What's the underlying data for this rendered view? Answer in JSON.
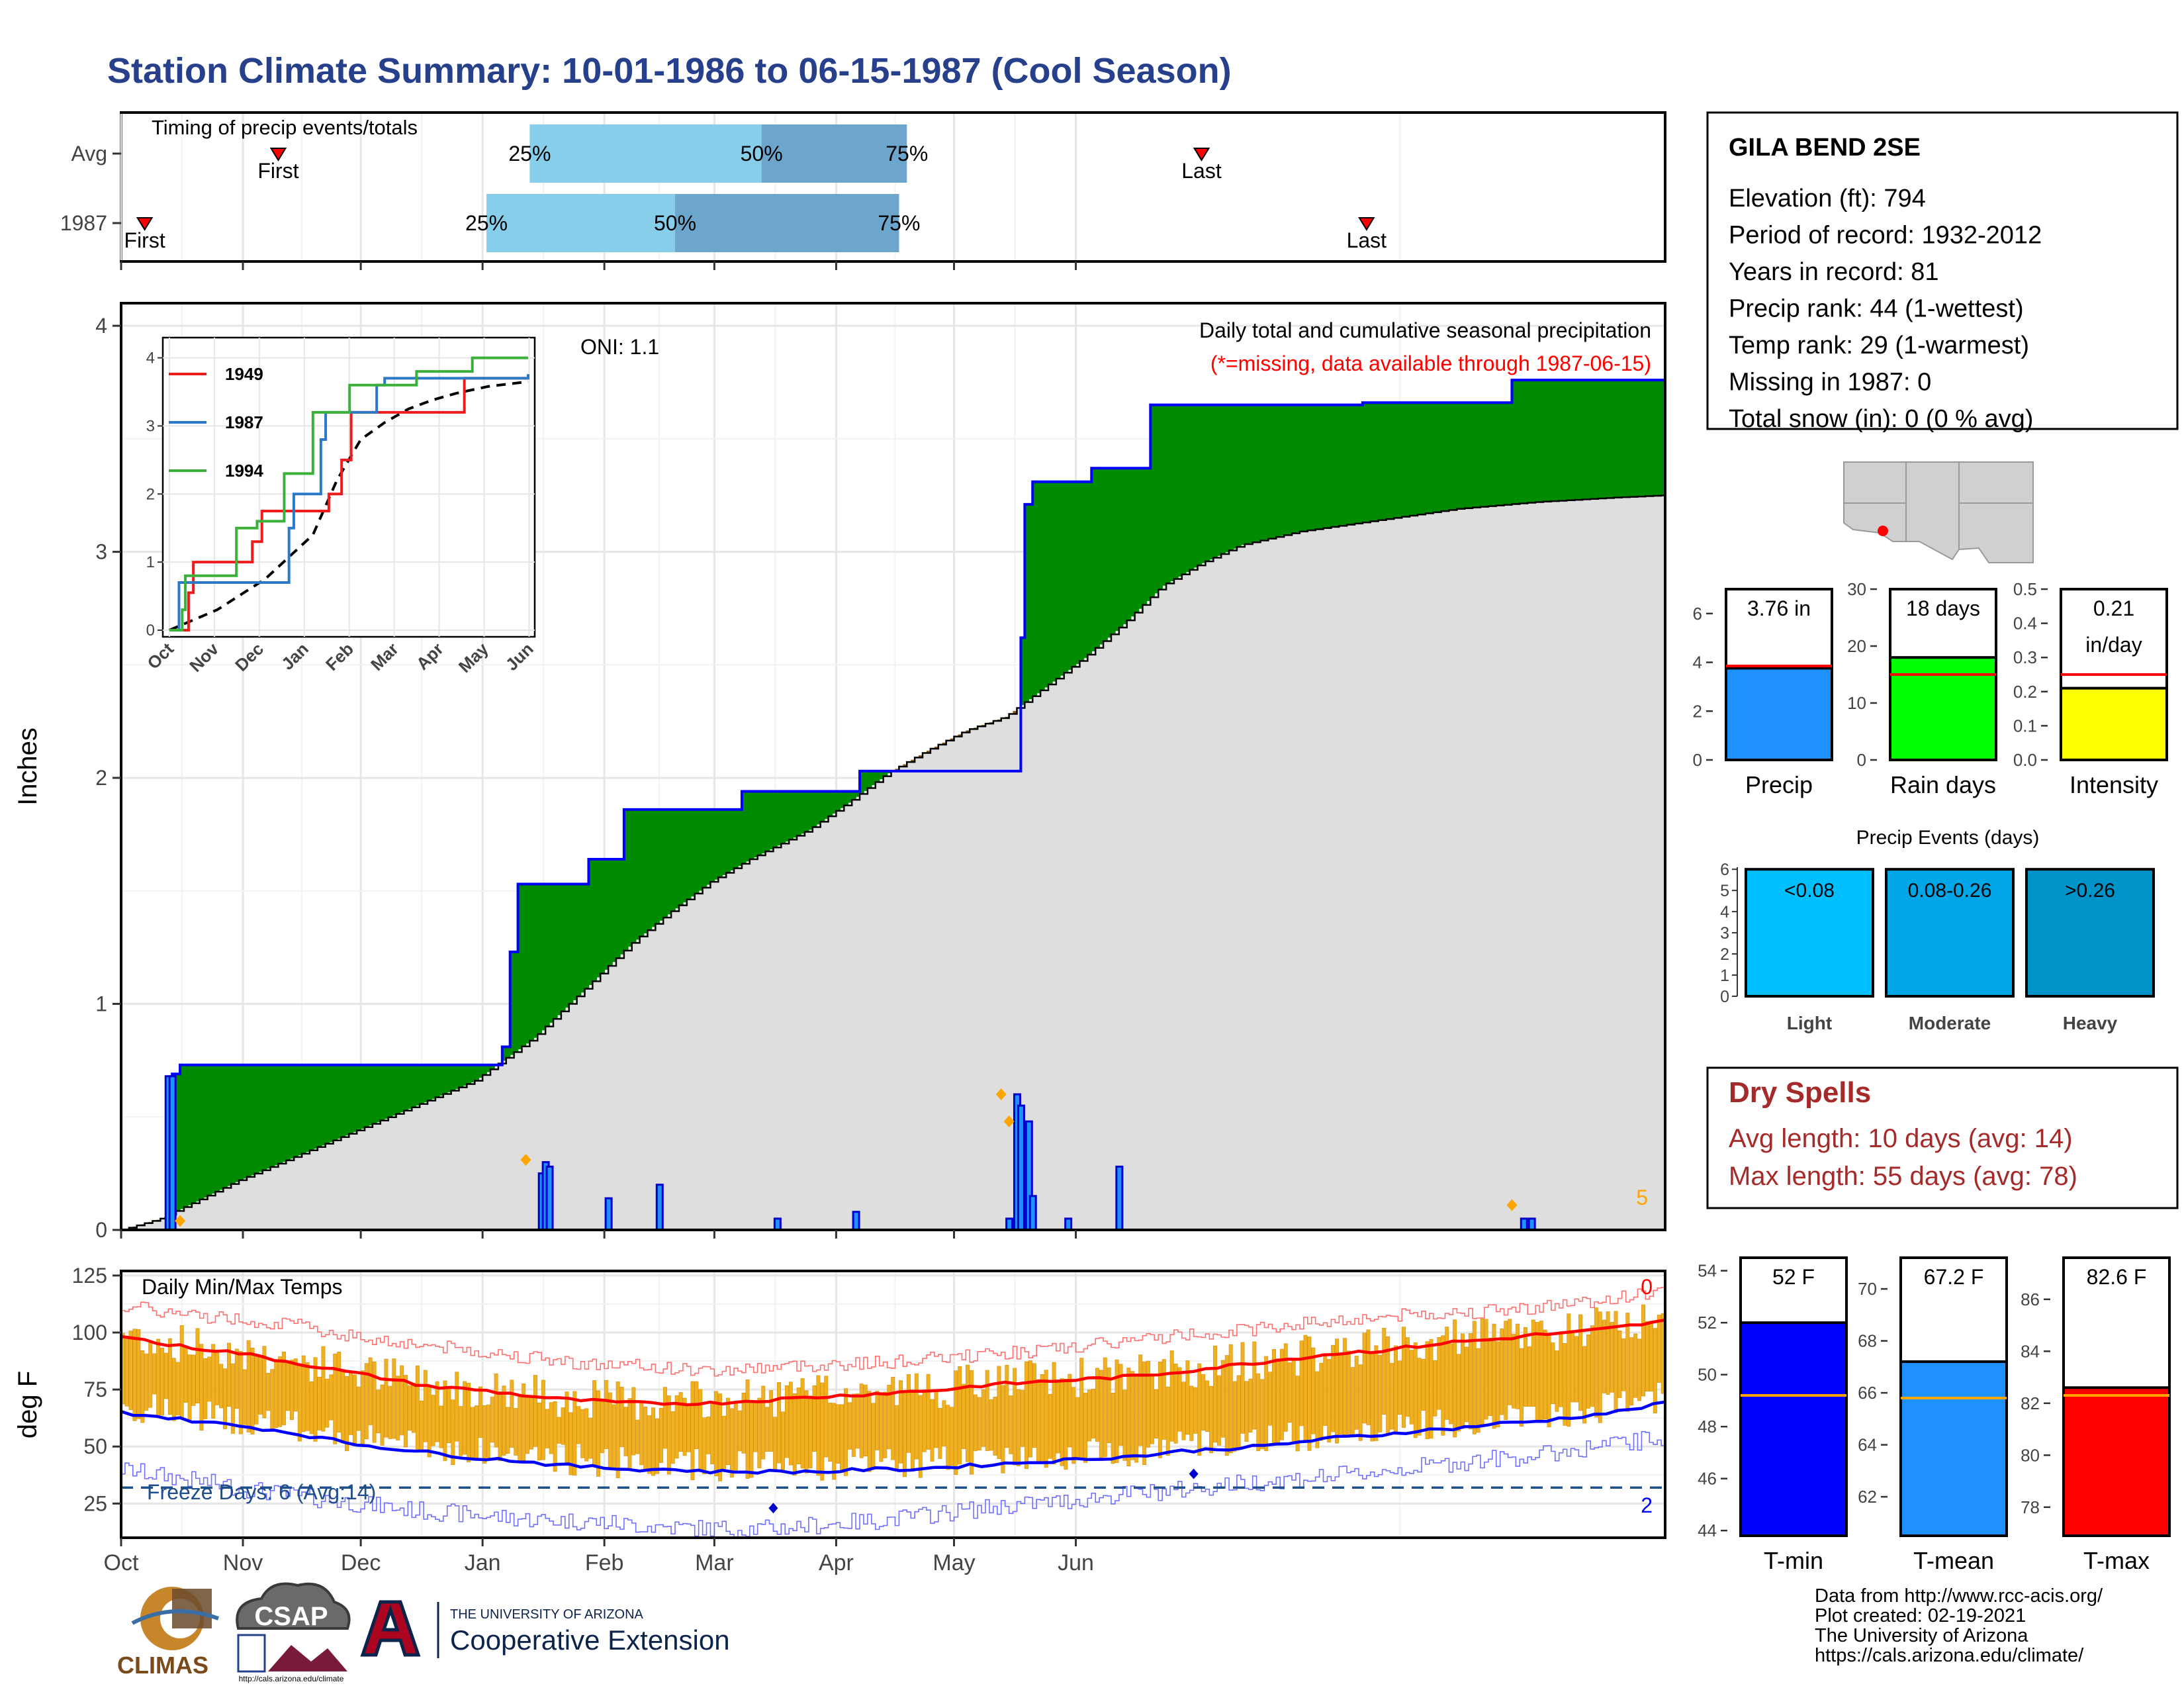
{
  "title": "Station Climate Summary: 10-01-1986 to 06-15-1987 (Cool Season)",
  "months": [
    "Oct",
    "Nov",
    "Dec",
    "Jan",
    "Feb",
    "Mar",
    "Apr",
    "May",
    "Jun"
  ],
  "timing": {
    "label": "Timing of precip events/totals",
    "rows": [
      {
        "name": "Avg",
        "first_day": 40,
        "p25": 104,
        "p50": 163,
        "p75": 200,
        "last_day": 275
      },
      {
        "name": "1987",
        "first_day": 6,
        "p25": 93,
        "p50": 141,
        "p75": 198,
        "last_day": 317
      }
    ],
    "first_label": "First",
    "last_label": "Last",
    "p25_label": "25%",
    "p50_label": "50%",
    "p75_label": "75%"
  },
  "station": {
    "name": "GILA BEND 2SE",
    "lines": [
      "Elevation (ft): 794",
      "Period of record: 1932-2012",
      "Years in record: 81",
      "Precip rank: 44 (1-wettest)",
      "Temp rank: 29 (1-warmest)",
      "Missing in 1987: 0",
      "Total snow (in): 0 (0 % avg)"
    ]
  },
  "chart_data": [
    {
      "type": "area",
      "name": "Daily total and cumulative seasonal precipitation",
      "title": "Daily total and cumulative seasonal precipitation",
      "subtitle": "(*=missing, data available through 1987-06-15)",
      "ylabel": "Inches",
      "ylim": [
        0,
        4.1
      ],
      "oni": "ONI: 1.1",
      "corner_count": "5",
      "cumulative_steps": [
        [
          0,
          0
        ],
        [
          9,
          0
        ],
        [
          13,
          0.69
        ],
        [
          15,
          0.73
        ],
        [
          96,
          0.73
        ],
        [
          97,
          0.81
        ],
        [
          99,
          1.23
        ],
        [
          101,
          1.53
        ],
        [
          117,
          1.53
        ],
        [
          119,
          1.64
        ],
        [
          126,
          1.64
        ],
        [
          128,
          1.86
        ],
        [
          156,
          1.86
        ],
        [
          158,
          1.94
        ],
        [
          186,
          1.94
        ],
        [
          188,
          2.03
        ],
        [
          228,
          2.03
        ],
        [
          229,
          2.62
        ],
        [
          230,
          3.21
        ],
        [
          232,
          3.31
        ],
        [
          246,
          3.31
        ],
        [
          247,
          3.37
        ],
        [
          261,
          3.37
        ],
        [
          262,
          3.65
        ],
        [
          315,
          3.65
        ],
        [
          316,
          3.66
        ],
        [
          353,
          3.66
        ],
        [
          354,
          3.76
        ],
        [
          393,
          3.76
        ]
      ],
      "average_cumulative": [
        [
          0,
          0
        ],
        [
          10,
          0.05
        ],
        [
          30,
          0.22
        ],
        [
          45,
          0.33
        ],
        [
          60,
          0.44
        ],
        [
          75,
          0.55
        ],
        [
          90,
          0.66
        ],
        [
          105,
          0.85
        ],
        [
          120,
          1.1
        ],
        [
          130,
          1.27
        ],
        [
          140,
          1.41
        ],
        [
          150,
          1.54
        ],
        [
          160,
          1.64
        ],
        [
          175,
          1.77
        ],
        [
          185,
          1.89
        ],
        [
          195,
          2.02
        ],
        [
          205,
          2.12
        ],
        [
          215,
          2.21
        ],
        [
          225,
          2.27
        ],
        [
          235,
          2.4
        ],
        [
          245,
          2.53
        ],
        [
          255,
          2.68
        ],
        [
          265,
          2.85
        ],
        [
          275,
          2.95
        ],
        [
          285,
          3.03
        ],
        [
          300,
          3.09
        ],
        [
          320,
          3.14
        ],
        [
          340,
          3.19
        ],
        [
          360,
          3.22
        ],
        [
          380,
          3.24
        ],
        [
          393,
          3.25
        ]
      ],
      "daily_bars": [
        [
          12,
          0.68
        ],
        [
          13,
          0.68
        ],
        [
          107,
          0.25
        ],
        [
          108,
          0.3
        ],
        [
          109,
          0.28
        ],
        [
          124,
          0.14
        ],
        [
          137,
          0.2
        ],
        [
          167,
          0.05
        ],
        [
          187,
          0.08
        ],
        [
          226,
          0.05
        ],
        [
          228,
          0.6
        ],
        [
          229,
          0.55
        ],
        [
          231,
          0.48
        ],
        [
          232,
          0.15
        ],
        [
          241,
          0.05
        ],
        [
          254,
          0.28
        ],
        [
          357,
          0.05
        ],
        [
          359,
          0.05
        ]
      ],
      "missing_markers": [
        [
          15,
          0.04
        ],
        [
          103,
          0.31
        ],
        [
          224,
          0.6
        ],
        [
          226,
          0.48
        ],
        [
          354,
          0.11
        ]
      ]
    },
    {
      "type": "line",
      "name": "inset cumulative years",
      "series": [
        {
          "name": "1949",
          "color": "#ee1c1c",
          "steps": [
            [
              5,
              0
            ],
            [
              12,
              0.55
            ],
            [
              15,
              1.0
            ],
            [
              45,
              1.0
            ],
            [
              52,
              1.3
            ],
            [
              58,
              1.75
            ],
            [
              95,
              1.75
            ],
            [
              100,
              2.0
            ],
            [
              108,
              2.5
            ],
            [
              114,
              3.2
            ],
            [
              180,
              3.2
            ],
            [
              185,
              3.7
            ],
            [
              225,
              3.7
            ]
          ]
        },
        {
          "name": "1987",
          "color": "#2a7ac8",
          "steps": [
            [
              0,
              0
            ],
            [
              6,
              0.7
            ],
            [
              60,
              0.7
            ],
            [
              75,
              1.5
            ],
            [
              78,
              2.0
            ],
            [
              88,
              2.0
            ],
            [
              95,
              2.8
            ],
            [
              98,
              3.2
            ],
            [
              125,
              3.2
            ],
            [
              130,
              3.6
            ],
            [
              135,
              3.7
            ],
            [
              225,
              3.76
            ]
          ]
        },
        {
          "name": "1994",
          "color": "#3bb03b",
          "steps": [
            [
              0,
              0
            ],
            [
              8,
              0.3
            ],
            [
              10,
              0.8
            ],
            [
              35,
              0.8
            ],
            [
              42,
              1.5
            ],
            [
              48,
              1.5
            ],
            [
              55,
              1.6
            ],
            [
              65,
              1.6
            ],
            [
              72,
              2.3
            ],
            [
              87,
              2.3
            ],
            [
              90,
              3.2
            ],
            [
              110,
              3.2
            ],
            [
              113,
              3.6
            ],
            [
              150,
              3.6
            ],
            [
              155,
              3.8
            ],
            [
              180,
              3.8
            ],
            [
              190,
              4.0
            ],
            [
              225,
              4.0
            ]
          ]
        }
      ],
      "average": [
        [
          0,
          0
        ],
        [
          30,
          0.3
        ],
        [
          60,
          0.75
        ],
        [
          90,
          1.4
        ],
        [
          105,
          2.2
        ],
        [
          120,
          2.8
        ],
        [
          135,
          3.05
        ],
        [
          150,
          3.25
        ],
        [
          165,
          3.38
        ],
        [
          180,
          3.48
        ],
        [
          200,
          3.58
        ],
        [
          225,
          3.65
        ]
      ]
    },
    {
      "type": "bar",
      "name": "Precip",
      "xlabel": "Precip",
      "value": 3.76,
      "avg": 3.85,
      "ylim": [
        0,
        7
      ],
      "label": "3.76 in",
      "ticks": [
        0,
        2,
        4,
        6
      ],
      "color": "#1e90ff"
    },
    {
      "type": "bar",
      "name": "Rain days",
      "xlabel": "Rain days",
      "value": 18,
      "avg": 15,
      "ylim": [
        0,
        30
      ],
      "label": "18 days",
      "ticks": [
        0,
        10,
        20,
        30
      ],
      "color": "#00ff00"
    },
    {
      "type": "bar",
      "name": "Intensity",
      "xlabel": "Intensity",
      "value": 0.21,
      "avg": 0.25,
      "ylim": [
        0,
        0.5
      ],
      "label": "0.21",
      "label2": "in/day",
      "ticks": [
        "0.0",
        "0.1",
        "0.2",
        "0.3",
        "0.4",
        "0.5"
      ],
      "color": "#ffff00"
    },
    {
      "type": "bar",
      "name": "Precip Events (days)",
      "title": "Precip Events (days)",
      "categories": [
        "Light",
        "Moderate",
        "Heavy"
      ],
      "values": [
        6,
        6,
        6
      ],
      "bar_labels": [
        "<0.08",
        "0.08-0.26",
        ">0.26"
      ],
      "ticks": [
        0,
        1,
        2,
        3,
        4,
        5,
        6
      ],
      "colors": [
        "#00bfff",
        "#00a6e6",
        "#0093c8"
      ]
    },
    {
      "type": "line",
      "name": "Daily Min/Max Temps",
      "title": "Daily Min/Max Temps",
      "ylabel": "deg F",
      "ylim": [
        10,
        127
      ],
      "yticks": [
        25,
        50,
        75,
        100,
        125
      ],
      "freeze_line": 32,
      "freeze_label": "Freeze Days: 6 (Avg:14)",
      "top_count": "0",
      "bottom_count": "2",
      "avg_max": [
        [
          0,
          99
        ],
        [
          10,
          95
        ],
        [
          20,
          93
        ],
        [
          30,
          91
        ],
        [
          40,
          88
        ],
        [
          50,
          85
        ],
        [
          60,
          82
        ],
        [
          70,
          79
        ],
        [
          80,
          76
        ],
        [
          90,
          75
        ],
        [
          100,
          73
        ],
        [
          110,
          71
        ],
        [
          120,
          70
        ],
        [
          130,
          69
        ],
        [
          140,
          69
        ],
        [
          150,
          69
        ],
        [
          160,
          70
        ],
        [
          170,
          71
        ],
        [
          180,
          72
        ],
        [
          190,
          73
        ],
        [
          200,
          74
        ],
        [
          210,
          75
        ],
        [
          220,
          77
        ],
        [
          230,
          78
        ],
        [
          240,
          79
        ],
        [
          250,
          80
        ],
        [
          260,
          81
        ],
        [
          270,
          83
        ],
        [
          280,
          85
        ],
        [
          290,
          87
        ],
        [
          300,
          89
        ],
        [
          310,
          91
        ],
        [
          320,
          92
        ],
        [
          330,
          94
        ],
        [
          340,
          96
        ],
        [
          350,
          97
        ],
        [
          360,
          99
        ],
        [
          370,
          100
        ],
        [
          380,
          102
        ],
        [
          393,
          105
        ]
      ],
      "avg_min": [
        [
          0,
          65
        ],
        [
          10,
          63
        ],
        [
          20,
          61
        ],
        [
          30,
          59
        ],
        [
          40,
          57
        ],
        [
          50,
          54
        ],
        [
          60,
          51
        ],
        [
          70,
          49
        ],
        [
          80,
          47
        ],
        [
          90,
          45
        ],
        [
          100,
          44
        ],
        [
          110,
          42
        ],
        [
          120,
          41
        ],
        [
          130,
          40
        ],
        [
          140,
          40
        ],
        [
          150,
          39
        ],
        [
          160,
          39
        ],
        [
          170,
          39
        ],
        [
          180,
          39
        ],
        [
          190,
          40
        ],
        [
          200,
          40
        ],
        [
          210,
          41
        ],
        [
          220,
          42
        ],
        [
          230,
          43
        ],
        [
          240,
          44
        ],
        [
          250,
          45
        ],
        [
          260,
          46
        ],
        [
          270,
          48
        ],
        [
          280,
          49
        ],
        [
          290,
          50
        ],
        [
          300,
          52
        ],
        [
          310,
          54
        ],
        [
          320,
          55
        ],
        [
          330,
          57
        ],
        [
          340,
          58
        ],
        [
          350,
          60
        ],
        [
          360,
          61
        ],
        [
          370,
          63
        ],
        [
          380,
          65
        ],
        [
          393,
          69
        ]
      ],
      "record_max": [
        [
          0,
          112
        ],
        [
          15,
          108
        ],
        [
          30,
          106
        ],
        [
          45,
          103
        ],
        [
          60,
          98
        ],
        [
          75,
          95
        ],
        [
          90,
          92
        ],
        [
          105,
          89
        ],
        [
          120,
          86
        ],
        [
          135,
          85
        ],
        [
          150,
          83
        ],
        [
          165,
          85
        ],
        [
          180,
          86
        ],
        [
          195,
          87
        ],
        [
          210,
          89
        ],
        [
          225,
          91
        ],
        [
          240,
          93
        ],
        [
          255,
          96
        ],
        [
          270,
          99
        ],
        [
          285,
          101
        ],
        [
          300,
          104
        ],
        [
          315,
          106
        ],
        [
          330,
          108
        ],
        [
          345,
          109
        ],
        [
          360,
          111
        ],
        [
          375,
          114
        ],
        [
          393,
          118
        ]
      ],
      "record_min": [
        [
          0,
          40
        ],
        [
          15,
          36
        ],
        [
          30,
          32
        ],
        [
          45,
          28
        ],
        [
          60,
          25
        ],
        [
          75,
          22
        ],
        [
          90,
          20
        ],
        [
          105,
          18
        ],
        [
          120,
          17
        ],
        [
          135,
          15
        ],
        [
          150,
          14
        ],
        [
          165,
          14
        ],
        [
          180,
          16
        ],
        [
          195,
          18
        ],
        [
          210,
          21
        ],
        [
          225,
          24
        ],
        [
          240,
          26
        ],
        [
          255,
          29
        ],
        [
          270,
          31
        ],
        [
          285,
          34
        ],
        [
          300,
          36
        ],
        [
          315,
          38
        ],
        [
          330,
          41
        ],
        [
          345,
          44
        ],
        [
          360,
          46
        ],
        [
          375,
          50
        ],
        [
          393,
          54
        ]
      ],
      "low_markers": [
        [
          166,
          23
        ],
        [
          273,
          38
        ]
      ]
    },
    {
      "type": "bar",
      "name": "T-min",
      "xlabel": "T-min",
      "value": 52,
      "avg": 49.2,
      "ylim": [
        43.8,
        54.5
      ],
      "label": "52 F",
      "ticks": [
        44,
        46,
        48,
        50,
        52,
        54
      ],
      "color": "#0000ff"
    },
    {
      "type": "bar",
      "name": "T-mean",
      "xlabel": "T-mean",
      "value": 67.2,
      "avg": 65.8,
      "ylim": [
        60.5,
        71.2
      ],
      "label": "67.2 F",
      "ticks": [
        62,
        64,
        66,
        68,
        70
      ],
      "color": "#1e90ff"
    },
    {
      "type": "bar",
      "name": "T-max",
      "xlabel": "T-max",
      "value": 82.6,
      "avg": 82.3,
      "ylim": [
        76.9,
        87.6
      ],
      "label": "82.6 F",
      "ticks": [
        78,
        80,
        82,
        84,
        86
      ],
      "color": "#ff0000"
    }
  ],
  "dry_spells": {
    "title": "Dry Spells",
    "avg_line": "Avg length: 10 days (avg: 14)",
    "max_line": "Max length: 55 days (avg: 78)"
  },
  "footer": {
    "lines": [
      "Data from http://www.rcc-acis.org/",
      "Plot created: 02-19-2021",
      "The University of Arizona",
      "https://cals.arizona.edu/climate/"
    ],
    "logo_climas": "CLIMAS",
    "logo_csap": "CSAP",
    "csap_url": "http://cals.arizona.edu/climate",
    "ua_small": "THE UNIVERSITY OF ARIZONA",
    "ua_big": "Cooperative Extension"
  }
}
